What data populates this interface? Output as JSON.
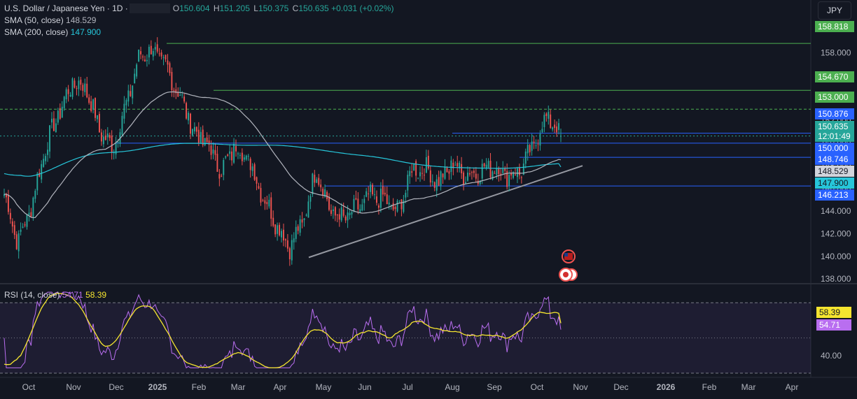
{
  "header": {
    "symbol": "U.S. Dollar / Japanese Yen · 1D ·",
    "ohlc": [
      {
        "label": "O",
        "value": "150.604"
      },
      {
        "label": "H",
        "value": "151.205"
      },
      {
        "label": "L",
        "value": "150.375"
      },
      {
        "label": "C",
        "value": "150.635"
      }
    ],
    "change": "+0.031 (+0.02%)",
    "currency_button": "JPY"
  },
  "indicators": {
    "sma50": {
      "label": "SMA (50, close)",
      "value": "148.529",
      "color": "#b2b5be"
    },
    "sma200": {
      "label": "SMA (200, close)",
      "value": "147.900",
      "color": "#26c6da"
    },
    "rsi": {
      "label": "RSI (14, close)",
      "value": "54.71",
      "ma_value": "58.39",
      "color": "#b96ef0",
      "ma_color": "#f5e52f"
    }
  },
  "price_tags": [
    {
      "text": "158.818",
      "value": 158.818,
      "bg": "#4caf50",
      "fg": "#ffffff"
    },
    {
      "text": "154.670",
      "value": 154.67,
      "bg": "#4caf50",
      "fg": "#ffffff"
    },
    {
      "text": "153.000",
      "value": 153.0,
      "bg": "#4caf50",
      "fg": "#ffffff"
    },
    {
      "text": "150.876",
      "value": 150.876,
      "bg": "#2962ff",
      "fg": "#ffffff"
    },
    {
      "text": "150.635",
      "value": 150.635,
      "bg": "#26a69a",
      "fg": "#ffffff",
      "sub": "12:01:49"
    },
    {
      "text": "150.000",
      "value": 150.0,
      "bg": "#2962ff",
      "fg": "#ffffff"
    },
    {
      "text": "148.746",
      "value": 148.746,
      "bg": "#2962ff",
      "fg": "#ffffff"
    },
    {
      "text": "148.529",
      "value": 148.529,
      "bg": "#d1d4dc",
      "fg": "#131722"
    },
    {
      "text": "147.900",
      "value": 147.9,
      "bg": "#26c6da",
      "fg": "#131722"
    },
    {
      "text": "146.213",
      "value": 146.213,
      "bg": "#2962ff",
      "fg": "#ffffff"
    }
  ],
  "rsi_tags": [
    {
      "text": "58.39",
      "value": 58.39,
      "bg": "#f5e52f",
      "fg": "#131722"
    },
    {
      "text": "54.71",
      "value": 54.71,
      "bg": "#b96ef0",
      "fg": "#ffffff"
    }
  ],
  "chart_data": {
    "type": "candlestick",
    "price_axis": {
      "ticks": [
        138,
        140,
        142,
        144,
        146,
        148,
        150,
        152,
        154,
        156,
        158
      ],
      "range": [
        137.7,
        160.8
      ]
    },
    "rsi_axis": {
      "ticks": [
        40
      ],
      "range": [
        30,
        80
      ],
      "bands": [
        70,
        30
      ]
    },
    "x_labels": [
      "Oct",
      "Nov",
      "Dec",
      "2025",
      "Feb",
      "Mar",
      "Apr",
      "May",
      "Jun",
      "Jul",
      "Aug",
      "Sep",
      "Oct",
      "Nov",
      "Dec",
      "2026",
      "Feb",
      "Mar",
      "Apr"
    ],
    "bold_labels": [
      "2025",
      "2026"
    ],
    "close_path": [
      [
        0,
        145.5
      ],
      [
        2,
        141.2
      ],
      [
        4,
        144.5
      ],
      [
        6,
        149.5
      ],
      [
        8,
        152.6
      ],
      [
        10,
        155.3
      ],
      [
        12,
        155.0
      ],
      [
        14,
        151.2
      ],
      [
        16,
        149.5
      ],
      [
        18,
        153.5
      ],
      [
        20,
        157.8
      ],
      [
        22,
        158.2
      ],
      [
        24,
        156.5
      ],
      [
        26,
        154.0
      ],
      [
        28,
        151.0
      ],
      [
        30,
        149.8
      ],
      [
        32,
        147.5
      ],
      [
        34,
        149.8
      ],
      [
        36,
        148.5
      ],
      [
        38,
        145.5
      ],
      [
        40,
        143.0
      ],
      [
        42,
        140.8
      ],
      [
        44,
        143.0
      ],
      [
        46,
        147.8
      ],
      [
        48,
        144.0
      ],
      [
        50,
        143.3
      ],
      [
        52,
        144.2
      ],
      [
        54,
        145.3
      ],
      [
        56,
        145.0
      ],
      [
        58,
        143.9
      ],
      [
        60,
        147.6
      ],
      [
        62,
        147.8
      ],
      [
        64,
        146.5
      ],
      [
        66,
        148.2
      ],
      [
        68,
        147.2
      ],
      [
        70,
        147.5
      ],
      [
        72,
        148.0
      ],
      [
        74,
        147.2
      ],
      [
        76,
        147.5
      ],
      [
        78,
        149.8
      ],
      [
        80,
        152.5
      ],
      [
        81,
        151.5
      ],
      [
        82,
        150.6
      ]
    ],
    "drawings": {
      "horizontal_lines": [
        {
          "value": 158.818,
          "color": "#4caf50",
          "style": "solid"
        },
        {
          "value": 154.67,
          "color": "#4caf50",
          "style": "solid"
        },
        {
          "value": 153.0,
          "color": "#4caf50",
          "style": "dashed"
        },
        {
          "value": 150.876,
          "color": "#2962ff",
          "style": "solid"
        },
        {
          "value": 150.635,
          "color": "#26a69a",
          "style": "dotted"
        },
        {
          "value": 150.0,
          "color": "#2962ff",
          "style": "solid"
        },
        {
          "value": 148.746,
          "color": "#2962ff",
          "style": "solid"
        },
        {
          "value": 146.213,
          "color": "#2962ff",
          "style": "solid"
        }
      ],
      "trendline": {
        "from": 139.9,
        "to": 148.0,
        "color": "#9598a1"
      }
    },
    "sma_last": {
      "sma50": 148.529,
      "sma200": 147.9
    },
    "rsi_last": {
      "rsi": 54.71,
      "ma": 58.39
    }
  }
}
